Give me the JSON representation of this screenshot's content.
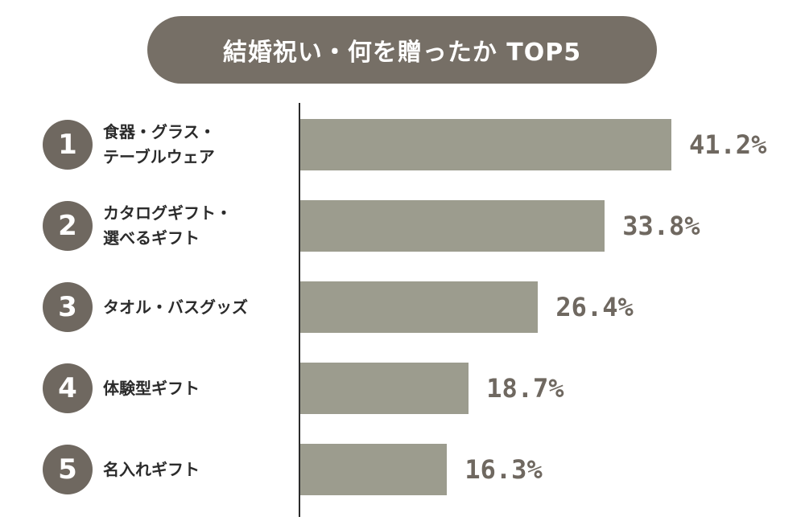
{
  "title": "結婚祝い・何を贈ったか TOP5",
  "colors": {
    "title_bg": "#766f66",
    "title_text": "#ffffff",
    "bar": "#9c9c8e",
    "rank_circle": "#6f6860",
    "value_text": "#6f6860",
    "label_text": "#2b2b2b"
  },
  "chart_data": {
    "type": "bar",
    "orientation": "horizontal",
    "title": "結婚祝い・何を贈ったか TOP5",
    "unit": "%",
    "xlim": [
      0,
      50
    ],
    "items": [
      {
        "rank": "1",
        "label_lines": [
          "食器・グラス・",
          "テーブルウェア"
        ],
        "value": 41.2,
        "value_label": "41.2%"
      },
      {
        "rank": "2",
        "label_lines": [
          "カタログギフト・",
          "選べるギフト"
        ],
        "value": 33.8,
        "value_label": "33.8%"
      },
      {
        "rank": "3",
        "label_lines": [
          "タオル・バスグッズ"
        ],
        "value": 26.4,
        "value_label": "26.4%"
      },
      {
        "rank": "4",
        "label_lines": [
          "体験型ギフト"
        ],
        "value": 18.7,
        "value_label": "18.7%"
      },
      {
        "rank": "5",
        "label_lines": [
          "名入れギフト"
        ],
        "value": 16.3,
        "value_label": "16.3%"
      }
    ]
  }
}
